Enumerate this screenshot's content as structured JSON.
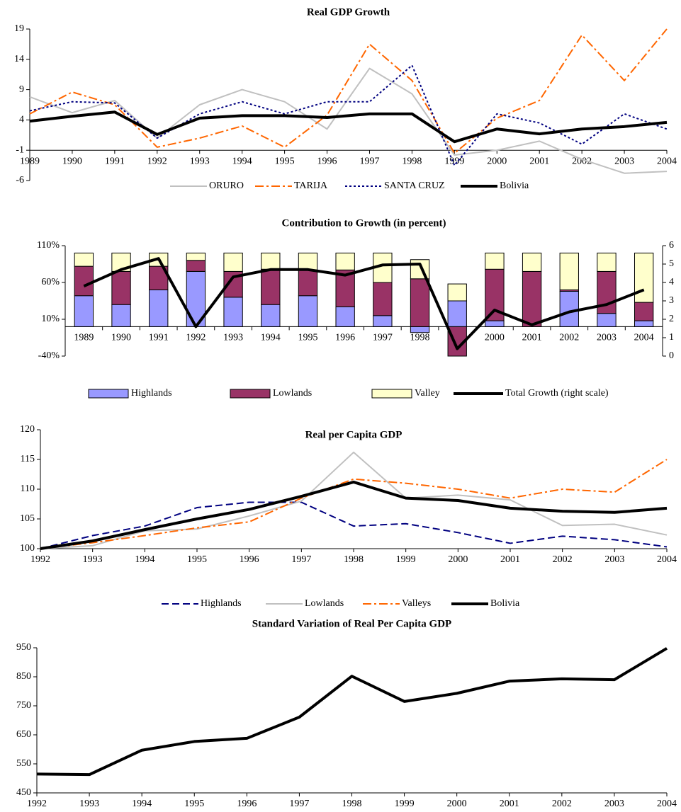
{
  "chart_data": [
    {
      "type": "line",
      "title": "Real GDP Growth",
      "categories": [
        "1989",
        "1990",
        "1991",
        "1992",
        "1993",
        "1994",
        "1995",
        "1996",
        "1997",
        "1998",
        "1999",
        "2000",
        "2001",
        "2002",
        "2003",
        "2004"
      ],
      "series": [
        {
          "name": "ORURO",
          "color": "#c0c0c0",
          "line_style": "solid",
          "width": 2,
          "values": [
            7.8,
            5.2,
            7.2,
            1.0,
            6.5,
            9.0,
            7.0,
            2.5,
            12.5,
            8.3,
            -1.8,
            -1.0,
            0.5,
            -2.5,
            -4.8,
            -4.5
          ]
        },
        {
          "name": "TARIJA",
          "color": "#ff6600",
          "line_style": "dash-dot",
          "width": 2,
          "values": [
            5.0,
            8.6,
            6.5,
            -0.5,
            1.0,
            3.0,
            -0.5,
            4.8,
            16.5,
            10.5,
            -1.5,
            4.3,
            7.2,
            18.0,
            10.5,
            19.0
          ]
        },
        {
          "name": "SANTA CRUZ",
          "color": "#000080",
          "line_style": "dotted",
          "width": 2,
          "values": [
            5.5,
            7.0,
            6.8,
            1.0,
            5.0,
            7.0,
            5.0,
            7.0,
            7.0,
            13.0,
            -3.5,
            5.0,
            3.5,
            0.0,
            5.0,
            2.5
          ]
        },
        {
          "name": "Bolivia",
          "color": "#000000",
          "line_style": "solid",
          "width": 4,
          "values": [
            3.8,
            4.6,
            5.3,
            1.6,
            4.3,
            4.7,
            4.7,
            4.4,
            5.0,
            5.0,
            0.4,
            2.5,
            1.7,
            2.5,
            2.9,
            3.6
          ]
        }
      ],
      "ylim": [
        -6,
        19
      ],
      "yticks": [
        -6,
        -1,
        4,
        9,
        14,
        19
      ],
      "legend": "bottom"
    },
    {
      "type": "bar",
      "title": "Contribution to Growth (in percent)",
      "stacked": true,
      "categories": [
        "1989",
        "1990",
        "1991",
        "1992",
        "1993",
        "1994",
        "1995",
        "1996",
        "1997",
        "1998",
        "1999",
        "2000",
        "2001",
        "2002",
        "2003",
        "2004"
      ],
      "series": [
        {
          "name": "Highlands",
          "color": "#9999ff",
          "values": [
            42,
            30,
            50,
            75,
            40,
            30,
            42,
            27,
            15,
            -8,
            35,
            8,
            0,
            48,
            18,
            8
          ]
        },
        {
          "name": "Lowlands",
          "color": "#993366",
          "values": [
            40,
            45,
            32,
            15,
            35,
            48,
            35,
            50,
            45,
            65,
            -40,
            70,
            75,
            2,
            57,
            25
          ]
        },
        {
          "name": "Valley",
          "color": "#ffffcc",
          "values": [
            18,
            25,
            18,
            10,
            25,
            22,
            23,
            23,
            40,
            26,
            23,
            22,
            25,
            50,
            25,
            67
          ]
        },
        {
          "name": "Total Growth (right scale)",
          "type": "line",
          "axis": "y2",
          "color": "#000000",
          "line_style": "solid",
          "width": 4,
          "values": [
            3.8,
            4.7,
            5.3,
            1.6,
            4.3,
            4.7,
            4.7,
            4.4,
            4.95,
            5.0,
            0.4,
            2.5,
            1.7,
            2.4,
            2.8,
            3.6
          ]
        }
      ],
      "ylim": [
        -40,
        110
      ],
      "yticks": [
        {
          "value": -40,
          "label": "-40%"
        },
        {
          "value": 10,
          "label": "10%"
        },
        {
          "value": 60,
          "label": "60%"
        },
        {
          "value": 110,
          "label": "110%"
        }
      ],
      "y2lim": [
        0,
        6
      ],
      "y2ticks": [
        0,
        1,
        2,
        3,
        4,
        5,
        6
      ],
      "legend": "bottom"
    },
    {
      "type": "line",
      "title": "Real per Capita GDP",
      "categories": [
        "1992",
        "1993",
        "1994",
        "1995",
        "1996",
        "1997",
        "1998",
        "1999",
        "2000",
        "2001",
        "2002",
        "2003",
        "2004"
      ],
      "series": [
        {
          "name": "Highlands",
          "color": "#000080",
          "line_style": "dashed",
          "width": 2,
          "values": [
            100,
            102.2,
            103.8,
            106.9,
            107.8,
            107.8,
            103.8,
            104.2,
            102.7,
            100.9,
            102.1,
            101.5,
            100.3
          ]
        },
        {
          "name": "Lowlands",
          "color": "#c0c0c0",
          "line_style": "solid",
          "width": 2,
          "values": [
            100,
            100.5,
            103,
            103.3,
            105.5,
            108,
            116.2,
            108.5,
            109.0,
            108.2,
            103.9,
            104.1,
            102.3
          ]
        },
        {
          "name": "Valleys",
          "color": "#ff6600",
          "line_style": "dash-dot",
          "width": 2,
          "values": [
            100,
            101,
            102.2,
            103.5,
            104.5,
            108.5,
            111.7,
            111,
            110,
            108.5,
            110,
            109.5,
            115
          ]
        },
        {
          "name": "Bolivia",
          "color": "#000000",
          "line_style": "solid",
          "width": 4,
          "values": [
            100,
            101.3,
            103.2,
            105,
            106.6,
            108.8,
            111.2,
            108.5,
            108.1,
            106.8,
            106.3,
            106.1,
            106.8
          ]
        }
      ],
      "ylim": [
        100,
        120
      ],
      "yticks": [
        100,
        105,
        110,
        115,
        120
      ],
      "legend": "bottom"
    },
    {
      "type": "line",
      "title": "Standard Variation of Real Per Capita GDP",
      "categories": [
        "1992",
        "1993",
        "1994",
        "1995",
        "1996",
        "1997",
        "1998",
        "1999",
        "2000",
        "2001",
        "2002",
        "2003",
        "2004"
      ],
      "series": [
        {
          "color": "#000000",
          "line_style": "solid",
          "width": 4,
          "values": [
            515,
            513,
            597,
            627,
            638,
            711,
            852,
            765,
            793,
            835,
            843,
            840,
            948
          ]
        }
      ],
      "ylim": [
        450,
        950
      ],
      "yticks": [
        450,
        550,
        650,
        750,
        850,
        950
      ]
    }
  ]
}
